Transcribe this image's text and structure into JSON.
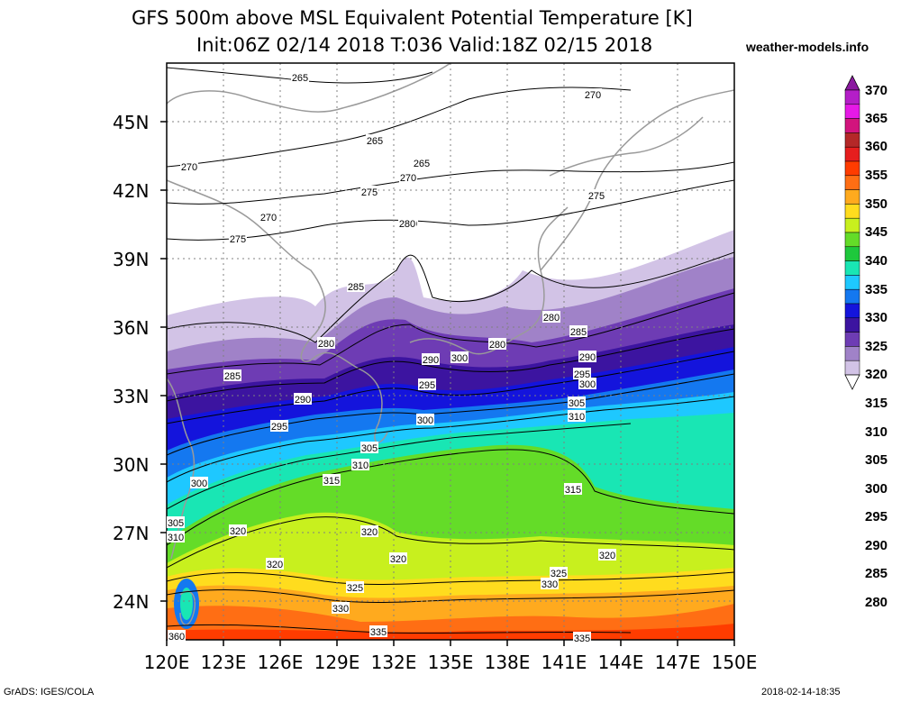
{
  "title_line1": "GFS 500m above MSL Equivalent Potential Temperature [K]",
  "title_line2": "Init:06Z 02/14 2018 T:036 Valid:18Z 02/15 2018",
  "brand": "weather-models.info",
  "credit": "GrADS: IGES/COLA",
  "timestamp": "2018-02-14-18:35",
  "map": {
    "lat_labels": [
      "45N",
      "42N",
      "39N",
      "36N",
      "33N",
      "30N",
      "27N",
      "24N"
    ],
    "lon_labels": [
      "120E",
      "123E",
      "126E",
      "129E",
      "132E",
      "135E",
      "138E",
      "141E",
      "144E",
      "147E",
      "150E"
    ],
    "contour_labels": [
      "265",
      "265",
      "265",
      "270",
      "270",
      "270",
      "270",
      "270",
      "275",
      "275",
      "275",
      "280",
      "280",
      "280",
      "280",
      "285",
      "285",
      "285",
      "290",
      "290",
      "290",
      "295",
      "295",
      "295",
      "300",
      "300",
      "300",
      "300",
      "305",
      "305",
      "305",
      "310",
      "310",
      "310",
      "315",
      "315",
      "320",
      "320",
      "320",
      "320",
      "320",
      "325",
      "325",
      "330",
      "330",
      "335",
      "335",
      "360"
    ]
  },
  "colorbar": {
    "labels": [
      "370",
      "365",
      "360",
      "355",
      "350",
      "345",
      "340",
      "335",
      "330",
      "325",
      "320",
      "315",
      "310",
      "305",
      "300",
      "295",
      "290",
      "285",
      "280"
    ],
    "colors": [
      "#8b1aa0",
      "#b41ec8",
      "#e619e6",
      "#d2147d",
      "#b42828",
      "#e61e1e",
      "#ff3c00",
      "#ff6e14",
      "#ffaa1e",
      "#ffdc1e",
      "#c8f01e",
      "#64dc28",
      "#1ec83c",
      "#19e6b4",
      "#1ec8ff",
      "#1478f0",
      "#1414dc",
      "#3c14a0",
      "#6e3cb4",
      "#a082c8",
      "#d2c3e6"
    ]
  }
}
